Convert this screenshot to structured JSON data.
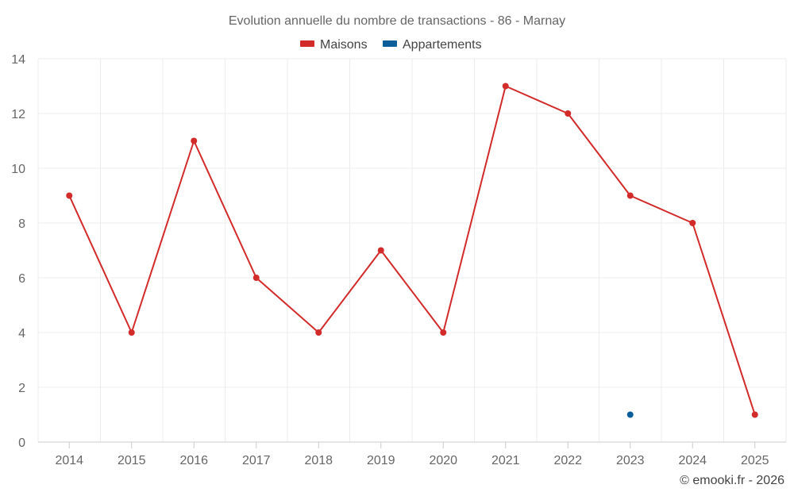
{
  "chart_data": {
    "type": "line",
    "title": "Evolution annuelle du nombre de transactions - 86 - Marnay",
    "xlabel": "",
    "ylabel": "",
    "categories": [
      "2014",
      "2015",
      "2016",
      "2017",
      "2018",
      "2019",
      "2020",
      "2021",
      "2022",
      "2023",
      "2024",
      "2025"
    ],
    "ylim": [
      0,
      14
    ],
    "yticks": [
      "0",
      "2",
      "4",
      "6",
      "8",
      "10",
      "12",
      "14"
    ],
    "grid": true,
    "legend_position": "top-center",
    "series": [
      {
        "name": "Maisons",
        "color": "#d32a2a",
        "values": [
          9,
          4,
          11,
          6,
          4,
          7,
          4,
          13,
          12,
          9,
          8,
          1
        ]
      },
      {
        "name": "Appartements",
        "color": "#0a5f9b",
        "values": [
          null,
          null,
          null,
          null,
          null,
          null,
          null,
          null,
          null,
          1,
          null,
          null
        ]
      }
    ],
    "credit": "© emooki.fr - 2026"
  }
}
